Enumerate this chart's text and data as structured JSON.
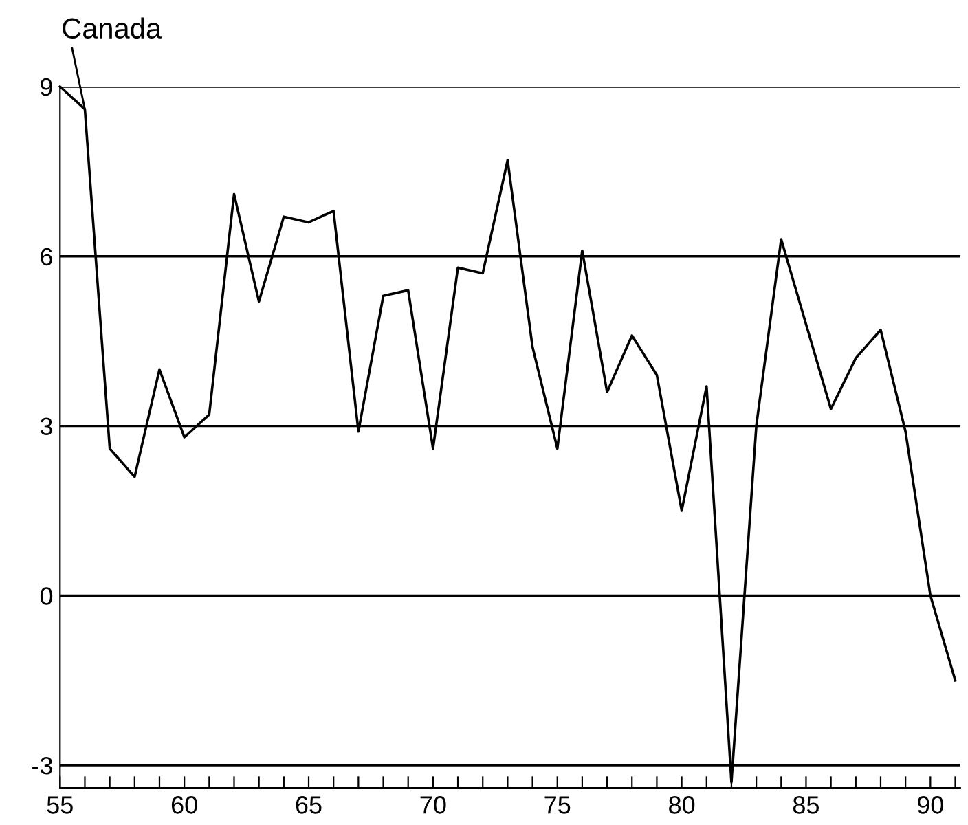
{
  "chart_data": {
    "type": "line",
    "x": [
      55,
      56,
      57,
      58,
      59,
      60,
      61,
      62,
      63,
      64,
      65,
      66,
      67,
      68,
      69,
      70,
      71,
      72,
      73,
      74,
      75,
      76,
      77,
      78,
      79,
      80,
      81,
      82,
      83,
      84,
      85,
      86,
      87,
      88,
      89,
      90,
      91
    ],
    "series": [
      {
        "color": "#000000",
        "values": [
          9.0,
          8.6,
          2.6,
          2.1,
          4.0,
          2.8,
          3.2,
          7.1,
          5.2,
          6.7,
          6.6,
          6.8,
          2.9,
          5.3,
          5.4,
          2.6,
          5.8,
          5.7,
          7.7,
          4.4,
          2.6,
          6.1,
          3.6,
          4.6,
          3.9,
          1.5,
          3.7,
          -3.3,
          3.0,
          6.3,
          4.8,
          3.3,
          4.2,
          4.7,
          2.9,
          0.0,
          -1.5
        ]
      }
    ],
    "annotations": [
      {
        "text": "Canada",
        "x": 56,
        "y": 8.6
      }
    ],
    "xlim": [
      55,
      91.2
    ],
    "ylim": [
      -3.4,
      9
    ],
    "xticks": [
      55,
      {
        "value": 56,
        "label": null
      },
      {
        "value": 57,
        "label": null
      },
      {
        "value": 58,
        "label": null
      },
      {
        "value": 59,
        "label": null
      },
      60,
      {
        "value": 61,
        "label": null
      },
      {
        "value": 62,
        "label": null
      },
      {
        "value": 63,
        "label": null
      },
      {
        "value": 64,
        "label": null
      },
      65,
      {
        "value": 66,
        "label": null
      },
      {
        "value": 67,
        "label": null
      },
      {
        "value": 68,
        "label": null
      },
      {
        "value": 69,
        "label": null
      },
      70,
      {
        "value": 71,
        "label": null
      },
      {
        "value": 72,
        "label": null
      },
      {
        "value": 73,
        "label": null
      },
      {
        "value": 74,
        "label": null
      },
      75,
      {
        "value": 76,
        "label": null
      },
      {
        "value": 77,
        "label": null
      },
      {
        "value": 78,
        "label": null
      },
      {
        "value": 79,
        "label": null
      },
      80,
      {
        "value": 81,
        "label": null
      },
      {
        "value": 82,
        "label": null
      },
      {
        "value": 83,
        "label": null
      },
      {
        "value": 84,
        "label": null
      },
      85,
      {
        "value": 86,
        "label": null
      },
      {
        "value": 87,
        "label": null
      },
      {
        "value": 88,
        "label": null
      },
      {
        "value": 89,
        "label": null
      },
      90,
      {
        "value": 91,
        "label": null
      }
    ],
    "yticks": [
      -3,
      0,
      3,
      6,
      9
    ],
    "grid": "y",
    "line_style": "solid",
    "marker": "none"
  }
}
